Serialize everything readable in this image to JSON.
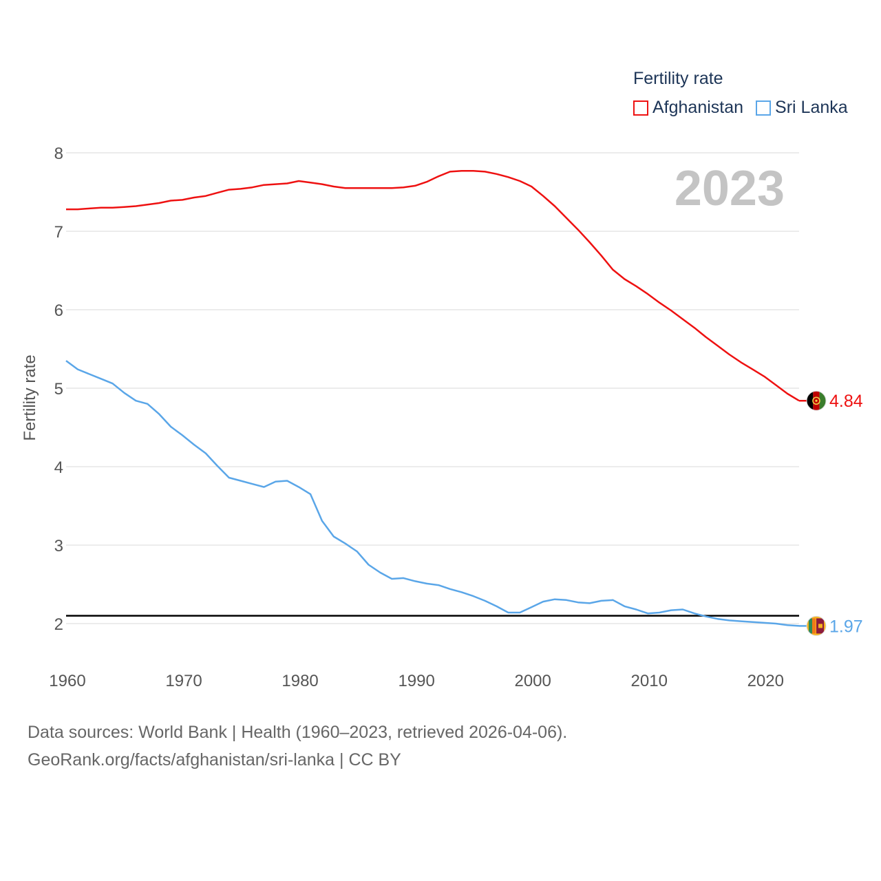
{
  "legend": {
    "title": "Fertility rate",
    "items": [
      {
        "label": "Afghanistan",
        "color": "#ee1111"
      },
      {
        "label": "Sri Lanka",
        "color": "#5aa6e8"
      }
    ]
  },
  "sources": {
    "line1": "Data sources: World Bank | Health (1960–2023, retrieved 2026-04-06).",
    "line2": "GeoRank.org/facts/afghanistan/sri-lanka | CC BY"
  },
  "chart_data": {
    "type": "line",
    "title": "Fertility rate",
    "year_label": "2023",
    "xlabel": "",
    "ylabel": "Fertility rate",
    "xlim": [
      1960,
      2023
    ],
    "ylim": [
      1.5,
      8.2
    ],
    "x_ticks": [
      1960,
      1970,
      1980,
      1990,
      2000,
      2010,
      2020
    ],
    "y_ticks": [
      2,
      3,
      4,
      5,
      6,
      7,
      8
    ],
    "grid": true,
    "reference_line": 2.1,
    "x": [
      1960,
      1961,
      1962,
      1963,
      1964,
      1965,
      1966,
      1967,
      1968,
      1969,
      1970,
      1971,
      1972,
      1973,
      1974,
      1975,
      1976,
      1977,
      1978,
      1979,
      1980,
      1981,
      1982,
      1983,
      1984,
      1985,
      1986,
      1987,
      1988,
      1989,
      1990,
      1991,
      1992,
      1993,
      1994,
      1995,
      1996,
      1997,
      1998,
      1999,
      2000,
      2001,
      2002,
      2003,
      2004,
      2005,
      2006,
      2007,
      2008,
      2009,
      2010,
      2011,
      2012,
      2013,
      2014,
      2015,
      2016,
      2017,
      2018,
      2019,
      2020,
      2021,
      2022,
      2023
    ],
    "series": [
      {
        "name": "Afghanistan",
        "color": "#ee1111",
        "end_label": "4.84",
        "flag": "afghanistan-flag",
        "values": [
          7.28,
          7.28,
          7.29,
          7.3,
          7.3,
          7.31,
          7.32,
          7.34,
          7.36,
          7.39,
          7.4,
          7.43,
          7.45,
          7.49,
          7.53,
          7.54,
          7.56,
          7.59,
          7.6,
          7.61,
          7.64,
          7.62,
          7.6,
          7.57,
          7.55,
          7.55,
          7.55,
          7.55,
          7.55,
          7.56,
          7.58,
          7.63,
          7.7,
          7.76,
          7.77,
          7.77,
          7.76,
          7.73,
          7.69,
          7.64,
          7.57,
          7.45,
          7.32,
          7.17,
          7.02,
          6.86,
          6.69,
          6.51,
          6.39,
          6.3,
          6.2,
          6.09,
          5.99,
          5.88,
          5.77,
          5.65,
          5.54,
          5.43,
          5.33,
          5.24,
          5.15,
          5.04,
          4.93,
          4.84
        ]
      },
      {
        "name": "Sri Lanka",
        "color": "#5aa6e8",
        "end_label": "1.97",
        "flag": "sri-lanka-flag",
        "values": [
          5.35,
          5.24,
          5.18,
          5.12,
          5.06,
          4.94,
          4.84,
          4.8,
          4.67,
          4.51,
          4.4,
          4.28,
          4.17,
          4.01,
          3.86,
          3.82,
          3.78,
          3.74,
          3.81,
          3.82,
          3.74,
          3.65,
          3.31,
          3.11,
          3.02,
          2.92,
          2.75,
          2.65,
          2.57,
          2.58,
          2.54,
          2.51,
          2.49,
          2.44,
          2.4,
          2.35,
          2.29,
          2.22,
          2.14,
          2.14,
          2.21,
          2.28,
          2.31,
          2.3,
          2.27,
          2.26,
          2.29,
          2.3,
          2.22,
          2.18,
          2.13,
          2.14,
          2.17,
          2.18,
          2.13,
          2.09,
          2.06,
          2.04,
          2.03,
          2.02,
          2.01,
          2.0,
          1.98,
          1.97
        ]
      }
    ]
  },
  "sources_note": ""
}
